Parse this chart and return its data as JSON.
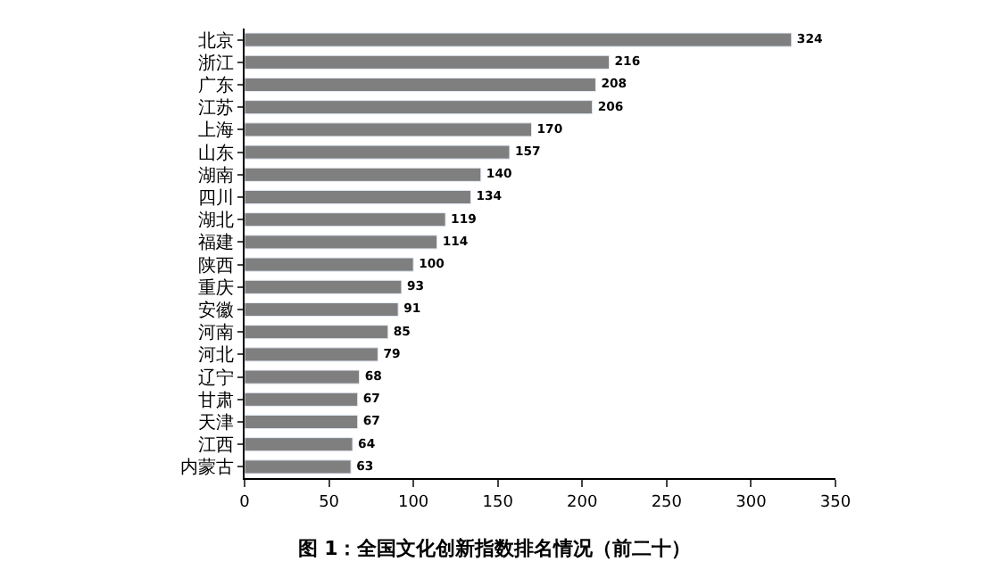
{
  "chart_data": {
    "type": "bar",
    "orientation": "horizontal",
    "title": "图 1：全国文化创新指数排名情况（前二十）",
    "categories": [
      "北京",
      "浙江",
      "广东",
      "江苏",
      "上海",
      "山东",
      "湖南",
      "四川",
      "湖北",
      "福建",
      "陕西",
      "重庆",
      "安徽",
      "河南",
      "河北",
      "辽宁",
      "甘肃",
      "天津",
      "江西",
      "内蒙古"
    ],
    "values": [
      324,
      216,
      208,
      206,
      170,
      157,
      140,
      134,
      119,
      114,
      100,
      93,
      91,
      85,
      79,
      68,
      67,
      67,
      64,
      63
    ],
    "color": "#7f7f7f",
    "data_labels": true,
    "legend": false,
    "xlim": [
      0,
      350
    ],
    "xticks": [
      0,
      50,
      100,
      150,
      200,
      250,
      300,
      350
    ]
  }
}
